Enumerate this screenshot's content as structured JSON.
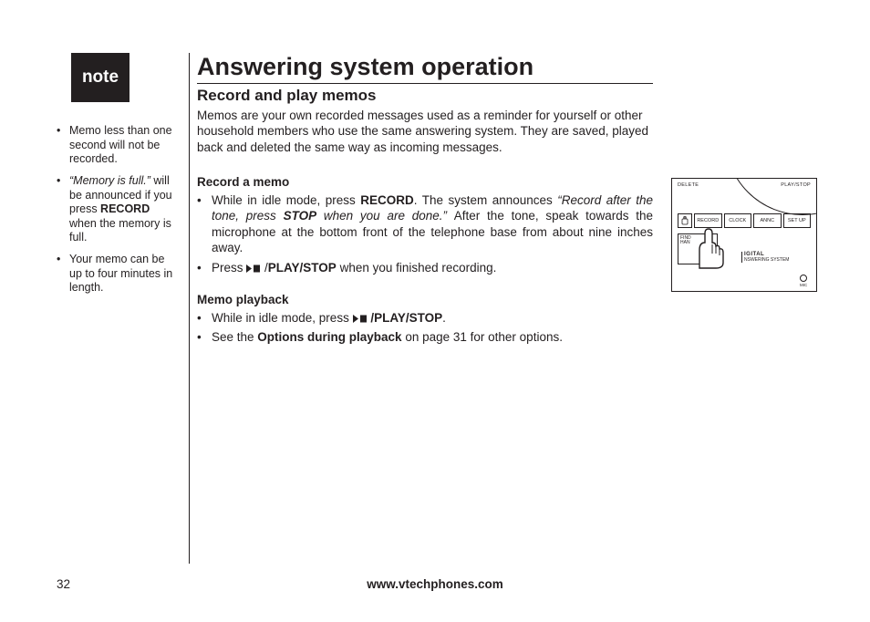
{
  "noteBox": {
    "label": "note"
  },
  "sidebar": {
    "items": [
      {
        "parts": [
          {
            "t": "Memo less than one second will not be recorded."
          }
        ]
      },
      {
        "parts": [
          {
            "t": "“Memory is full.”",
            "i": true
          },
          {
            "t": " will be announced if you press "
          },
          {
            "t": "RECORD",
            "b": true
          },
          {
            "t": " when the memory is full."
          }
        ]
      },
      {
        "parts": [
          {
            "t": "Your memo can be up to four minutes in length."
          }
        ]
      }
    ]
  },
  "main": {
    "title": "Answering system operation",
    "subtitle": "Record and play memos",
    "intro": "Memos are your own recorded messages used as a reminder for yourself or other household members who use the same answering system. They are saved, played back and deleted the same way as incoming messages.",
    "sections": [
      {
        "head": "Record a memo",
        "items": [
          {
            "justify": true,
            "parts": [
              {
                "t": "While in idle mode, press "
              },
              {
                "t": "RECORD",
                "b": true
              },
              {
                "t": ". The system announces "
              },
              {
                "t": "“Record after the tone, press ",
                "i": true
              },
              {
                "t": "STOP",
                "b": true,
                "i": true
              },
              {
                "t": " when you are done.” ",
                "i": true
              },
              {
                "t": "After the tone, speak towards the microphone at the bottom front of the telephone base from about nine inches away."
              }
            ]
          },
          {
            "parts": [
              {
                "t": "Press "
              },
              {
                "glyph": "playstop"
              },
              {
                "t": " /"
              },
              {
                "t": "PLAY/STOP",
                "b": true
              },
              {
                "t": " when you finished recording."
              }
            ]
          }
        ]
      },
      {
        "head": "Memo playback",
        "items": [
          {
            "parts": [
              {
                "t": "While in idle mode, press "
              },
              {
                "glyph": "playstop"
              },
              {
                "t": " "
              },
              {
                "t": "/PLAY/STOP",
                "b": true
              },
              {
                "t": "."
              }
            ]
          },
          {
            "parts": [
              {
                "t": "See the "
              },
              {
                "t": "Options during playback",
                "b": true
              },
              {
                "t": " on page 31 for other options."
              }
            ]
          }
        ]
      }
    ]
  },
  "figure": {
    "topLeft": "DELETE",
    "topRight": "PLAY/STOP",
    "buttons": [
      "",
      "RECORD",
      "CLOCK",
      "ANNC",
      "SET UP"
    ],
    "panelLines": [
      "FIND",
      "HAN"
    ],
    "digital": "IGITAL",
    "digitalSub": "NSWERING SYSTEM",
    "mic": "MIC"
  },
  "footer": {
    "page": "32",
    "url": "www.vtechphones.com"
  },
  "colors": {
    "ink": "#231f20",
    "paper": "#ffffff"
  }
}
